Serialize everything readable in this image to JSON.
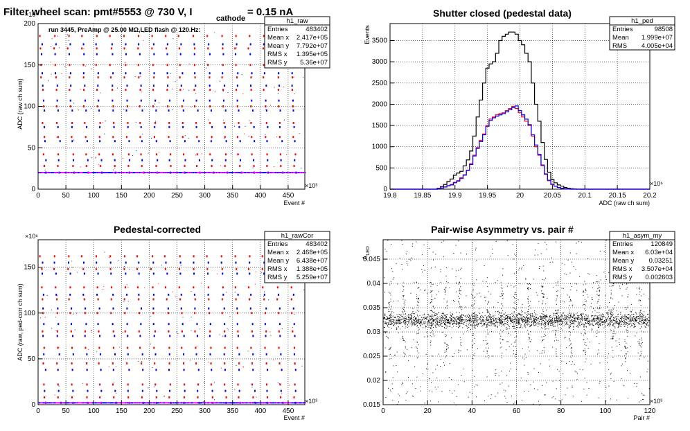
{
  "window": {
    "main_title_prefix": "Filter wheel scan: pmt#5553 @   730 V, I",
    "main_title_sub": "cathode",
    "main_title_suffix": "= 0.15 nA"
  },
  "chart_data": [
    {
      "id": "raw",
      "type": "scatter",
      "title": "",
      "ylabel": "ADC (raw ch sum)",
      "xlabel": "Event #",
      "x_exponent": "×10³",
      "y_exponent": "×10⁶",
      "xlim": [
        0,
        480
      ],
      "ylim": [
        0,
        200
      ],
      "xticks": [
        "0",
        "50",
        "100",
        "150",
        "200",
        "250",
        "300",
        "350",
        "400",
        "450"
      ],
      "yticks": [
        "0",
        "50",
        "100",
        "150",
        "200"
      ],
      "annotation": "run 3445, PreAmp @ 25.00 MΩ,LED flash @  120.Hz:",
      "legend": "top-right",
      "levels_red": [
        185,
        170,
        150,
        135,
        120,
        100,
        80,
        63,
        42,
        28
      ],
      "levels_blue": [
        175,
        163,
        140,
        125,
        107,
        95,
        75,
        58,
        35,
        20
      ],
      "baseline": 20,
      "step_period": 25,
      "stats": {
        "name": "h1_raw",
        "rows": [
          [
            "Entries",
            "483402"
          ],
          [
            "Mean x",
            "2.417e+05"
          ],
          [
            "Mean y",
            "7.792e+07"
          ],
          [
            "RMS x",
            "1.395e+05"
          ],
          [
            "RMS y",
            "5.36e+07"
          ]
        ]
      }
    },
    {
      "id": "ped",
      "type": "histogram",
      "title": "Shutter closed (pedestal data)",
      "ylabel": "Events",
      "xlabel": "ADC (raw ch sum)",
      "x_exponent": "×10⁶",
      "xlim": [
        19.8,
        20.2
      ],
      "ylim": [
        0,
        3900
      ],
      "xticks": [
        "19.8",
        "19.85",
        "19.9",
        "19.95",
        "20",
        "20.05",
        "20.1",
        "20.15",
        "20.2"
      ],
      "yticks": [
        "0",
        "500",
        "1000",
        "1500",
        "2000",
        "2500",
        "3000",
        "3500"
      ],
      "legend": "top-right",
      "x": [
        19.875,
        19.88,
        19.885,
        19.89,
        19.895,
        19.9,
        19.905,
        19.91,
        19.915,
        19.92,
        19.925,
        19.93,
        19.935,
        19.94,
        19.945,
        19.95,
        19.955,
        19.96,
        19.965,
        19.97,
        19.975,
        19.98,
        19.985,
        19.99,
        19.995,
        20.0,
        20.005,
        20.01,
        20.015,
        20.02,
        20.025,
        20.03,
        20.035,
        20.04,
        20.045,
        20.05,
        20.055,
        20.06,
        20.065,
        20.07,
        20.075,
        20.08,
        20.085,
        20.09,
        20.095,
        20.1
      ],
      "series": [
        {
          "color": "#000000",
          "values": [
            20,
            60,
            110,
            180,
            240,
            330,
            380,
            420,
            550,
            690,
            900,
            1250,
            1700,
            2100,
            2500,
            2850,
            2950,
            3000,
            3200,
            3500,
            3600,
            3650,
            3700,
            3700,
            3650,
            3500,
            3400,
            3200,
            3000,
            2500,
            2000,
            1600,
            1100,
            700,
            400,
            230,
            150,
            100,
            70,
            40,
            20,
            10,
            5,
            0,
            0,
            0
          ]
        },
        {
          "color": "#ff0000",
          "values": [
            10,
            30,
            55,
            85,
            110,
            160,
            200,
            270,
            340,
            450,
            600,
            800,
            980,
            1150,
            1300,
            1500,
            1650,
            1700,
            1750,
            1780,
            1800,
            1850,
            1900,
            1950,
            1900,
            1800,
            1700,
            1600,
            1500,
            1250,
            1000,
            800,
            550,
            350,
            200,
            110,
            70,
            40,
            20,
            10,
            5,
            0,
            0,
            0,
            0,
            0
          ]
        },
        {
          "color": "#0000ff",
          "values": [
            10,
            25,
            50,
            80,
            100,
            150,
            190,
            250,
            330,
            440,
            580,
            780,
            960,
            1120,
            1280,
            1480,
            1620,
            1680,
            1720,
            1750,
            1780,
            1820,
            1870,
            1920,
            1960,
            1850,
            1750,
            1650,
            1520,
            1280,
            1040,
            820,
            570,
            360,
            210,
            120,
            70,
            40,
            20,
            10,
            5,
            0,
            0,
            0,
            0,
            0
          ]
        }
      ],
      "stats": {
        "name": "h1_ped",
        "rows": [
          [
            "Entries",
            "98508"
          ],
          [
            "Mean",
            "1.999e+07"
          ],
          [
            "RMS",
            "4.005e+04"
          ]
        ]
      }
    },
    {
      "id": "rawCor",
      "type": "scatter",
      "title": "Pedestal-corrected",
      "ylabel": "ADC (raw, ped-corr ch sum)",
      "xlabel": "Event #",
      "x_exponent": "×10³",
      "y_exponent": "×10⁶",
      "xlim": [
        0,
        480
      ],
      "ylim": [
        0,
        180
      ],
      "xticks": [
        "0",
        "50",
        "100",
        "150",
        "200",
        "250",
        "300",
        "350",
        "400",
        "450"
      ],
      "yticks": [
        "0",
        "50",
        "100",
        "150"
      ],
      "legend": "top-right",
      "levels_red": [
        162,
        148,
        128,
        115,
        100,
        80,
        62,
        45,
        22,
        8
      ],
      "levels_blue": [
        155,
        143,
        120,
        105,
        88,
        75,
        55,
        38,
        15,
        2
      ],
      "baseline": 2,
      "step_period": 25,
      "stats": {
        "name": "h1_rawCor",
        "rows": [
          [
            "Entries",
            "483402"
          ],
          [
            "Mean x",
            "2.468e+05"
          ],
          [
            "Mean y",
            "6.438e+07"
          ],
          [
            "RMS x",
            "1.388e+05"
          ],
          [
            "RMS y",
            "5.259e+07"
          ]
        ]
      }
    },
    {
      "id": "asym",
      "type": "scatter",
      "title": "Pair-wise Asymmetry vs. pair #",
      "ylabel": "A_LED",
      "ylabel_main": "A",
      "ylabel_sub": "LED",
      "xlabel": "Pair #",
      "x_exponent": "×10³",
      "xlim": [
        0,
        120
      ],
      "ylim": [
        0.015,
        0.049
      ],
      "xticks": [
        "0",
        "20",
        "40",
        "60",
        "80",
        "100",
        "120"
      ],
      "yticks": [
        "0.015",
        "0.02",
        "0.025",
        "0.03",
        "0.035",
        "0.04",
        "0.045"
      ],
      "legend": "top-right",
      "center": 0.0325,
      "band_halfwidth": 0.0015,
      "spike_period": 6.25,
      "stats": {
        "name": "h1_asym_my",
        "rows": [
          [
            "Entries",
            "120849"
          ],
          [
            "Mean x",
            "6.03e+04"
          ],
          [
            "Mean y",
            "0.03251"
          ],
          [
            "RMS x",
            "3.507e+04"
          ],
          [
            "RMS y",
            "0.002603"
          ]
        ]
      }
    }
  ]
}
